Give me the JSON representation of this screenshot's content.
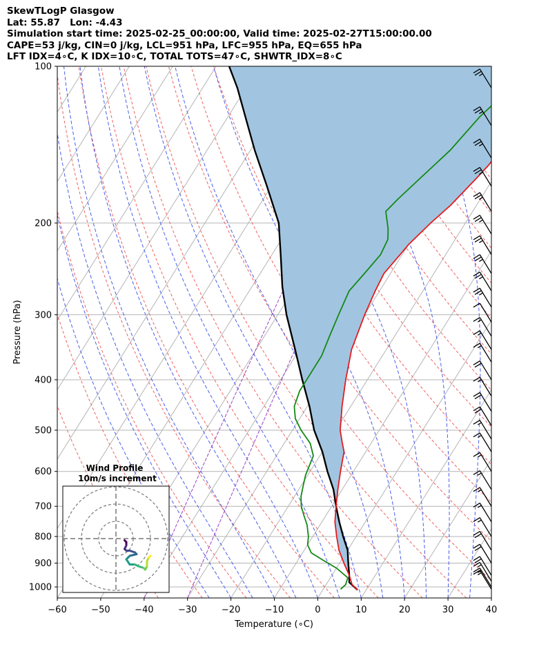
{
  "header": {
    "title": "SkewTLogP Glasgow",
    "location": "Lat: 55.87   Lon: -4.43",
    "times": "Simulation start time: 2025-02-25_00:00:00, Valid time: 2025-02-27T15:00:00.00",
    "indices1": "CAPE=53 j/kg, CIN=0 j/kg, LCL=951 hPa, LFC=955 hPa, EQ=655 hPa",
    "indices2": "LFT IDX=4∘C, K IDX=10∘C, TOTAL TOTS=47∘C, SHWTR_IDX=8∘C"
  },
  "chart_data": {
    "type": "line",
    "xlabel": "Temperature (∘C)",
    "ylabel": "Pressure (hPa)",
    "xlim": [
      -60,
      40
    ],
    "ylim": [
      1050,
      100
    ],
    "y_scale": "log",
    "xticks": [
      "−60",
      "−50",
      "−40",
      "−30",
      "−20",
      "−10",
      "0",
      "10",
      "20",
      "30",
      "40"
    ],
    "yticks": [
      "100",
      "200",
      "300",
      "400",
      "500",
      "600",
      "700",
      "800",
      "900",
      "1000"
    ],
    "grid": true,
    "colors": {
      "temperature": "#e41a1c",
      "dewpoint": "#138813",
      "parcel": "#000000",
      "cape_fill": "#a1c5e0",
      "dry_adiabat": "#f06060",
      "moist_adiabat": "#4a5ee8",
      "mixing_ratio": "#9a40c8"
    },
    "series": [
      {
        "key": "temperature",
        "points": [
          [
            8,
            1013
          ],
          [
            6,
            990
          ],
          [
            4,
            950
          ],
          [
            1,
            900
          ],
          [
            -2,
            850
          ],
          [
            -4.5,
            800
          ],
          [
            -7,
            750
          ],
          [
            -9,
            700
          ],
          [
            -11,
            650
          ],
          [
            -13,
            600
          ],
          [
            -15,
            550
          ],
          [
            -17,
            525
          ],
          [
            -19,
            500
          ],
          [
            -22,
            450
          ],
          [
            -25,
            400
          ],
          [
            -28,
            350
          ],
          [
            -30,
            300
          ],
          [
            -31,
            270
          ],
          [
            -31.5,
            250
          ],
          [
            -31,
            240
          ],
          [
            -30.5,
            230
          ],
          [
            -30,
            220
          ],
          [
            -28,
            200
          ],
          [
            -26,
            185
          ],
          [
            -25,
            175
          ],
          [
            -24,
            165
          ],
          [
            -23,
            155
          ],
          [
            -22.5,
            145
          ],
          [
            -22,
            135
          ],
          [
            -21,
            125
          ],
          [
            -20,
            115
          ],
          [
            -19,
            107
          ],
          [
            -18,
            100
          ]
        ]
      },
      {
        "key": "dewpoint",
        "points": [
          [
            4,
            1010
          ],
          [
            4.5,
            990
          ],
          [
            4,
            960
          ],
          [
            0,
            920
          ],
          [
            -4,
            890
          ],
          [
            -8,
            860
          ],
          [
            -10,
            830
          ],
          [
            -11,
            800
          ],
          [
            -13,
            760
          ],
          [
            -15,
            730
          ],
          [
            -17,
            700
          ],
          [
            -18.5,
            670
          ],
          [
            -19.5,
            640
          ],
          [
            -20.5,
            610
          ],
          [
            -21.5,
            560
          ],
          [
            -24,
            530
          ],
          [
            -28,
            500
          ],
          [
            -31,
            475
          ],
          [
            -33,
            450
          ],
          [
            -34,
            420
          ],
          [
            -34,
            390
          ],
          [
            -34,
            360
          ],
          [
            -35,
            330
          ],
          [
            -36,
            300
          ],
          [
            -37,
            270
          ],
          [
            -36,
            250
          ],
          [
            -35,
            230
          ],
          [
            -35.5,
            215
          ],
          [
            -37,
            205
          ],
          [
            -40,
            190
          ],
          [
            -39,
            180
          ],
          [
            -37,
            165
          ],
          [
            -34,
            145
          ],
          [
            -32,
            125
          ],
          [
            -29,
            110
          ],
          [
            -27,
            100
          ]
        ]
      },
      {
        "key": "parcel",
        "points": [
          [
            8,
            1013
          ],
          [
            5,
            980
          ],
          [
            4,
            950
          ],
          [
            2,
            900
          ],
          [
            0,
            850
          ],
          [
            -3,
            800
          ],
          [
            -6,
            750
          ],
          [
            -9,
            700
          ],
          [
            -12,
            650
          ],
          [
            -16,
            600
          ],
          [
            -20,
            550
          ],
          [
            -25,
            500
          ],
          [
            -29.5,
            450
          ],
          [
            -35,
            400
          ],
          [
            -41,
            350
          ],
          [
            -48,
            300
          ],
          [
            -53,
            265
          ],
          [
            -58,
            230
          ],
          [
            -63,
            200
          ],
          [
            -71,
            170
          ],
          [
            -79,
            145
          ],
          [
            -86,
            125
          ],
          [
            -92,
            110
          ],
          [
            -97,
            100
          ]
        ]
      }
    ],
    "skew_deg_per_decade": 75,
    "dry_adiabats_theta_c": [
      -40,
      -30,
      -20,
      -10,
      0,
      10,
      20,
      30,
      40,
      50,
      60,
      70,
      80,
      90,
      100,
      110,
      120,
      130,
      140,
      150,
      160,
      170,
      180,
      190,
      200
    ],
    "moist_adiabats_start_c": [
      -25,
      -20,
      -15,
      -10,
      -5,
      0,
      5,
      10,
      15,
      20,
      25,
      30,
      35,
      40
    ],
    "mixing_ratio_start_c": [
      -40,
      -30
    ],
    "wind_barbs": {
      "pressures": [
        110,
        130,
        150,
        170,
        190,
        210,
        230,
        250,
        270,
        290,
        310,
        330,
        350,
        370,
        400,
        430,
        460,
        490,
        520,
        550,
        600,
        650,
        700,
        750,
        800,
        850,
        900,
        950,
        975,
        1000,
        1010
      ],
      "speeds_kt": [
        25,
        25,
        25,
        25,
        25,
        25,
        25,
        25,
        25,
        25,
        10,
        15,
        15,
        15,
        20,
        15,
        20,
        20,
        15,
        15,
        15,
        15,
        15,
        15,
        15,
        20,
        20,
        20,
        15,
        15,
        15
      ]
    },
    "hodograph": {
      "title": "Wind Profile",
      "subtitle": "10m/s increment",
      "rings_ms": [
        10,
        20,
        30
      ],
      "points_uv": [
        [
          5,
          -1
        ],
        [
          6,
          -2
        ],
        [
          6,
          -4
        ],
        [
          5,
          -6
        ],
        [
          6,
          -7
        ],
        [
          8,
          -7
        ],
        [
          11,
          -8
        ],
        [
          12,
          -9
        ],
        [
          8,
          -10
        ],
        [
          7,
          -11
        ],
        [
          6,
          -12
        ],
        [
          8,
          -15
        ],
        [
          11,
          -15
        ],
        [
          13,
          -16
        ],
        [
          16,
          -17
        ],
        [
          17,
          -18
        ],
        [
          18,
          -16
        ],
        [
          18,
          -13
        ],
        [
          19,
          -11
        ],
        [
          20,
          -10
        ]
      ]
    }
  }
}
